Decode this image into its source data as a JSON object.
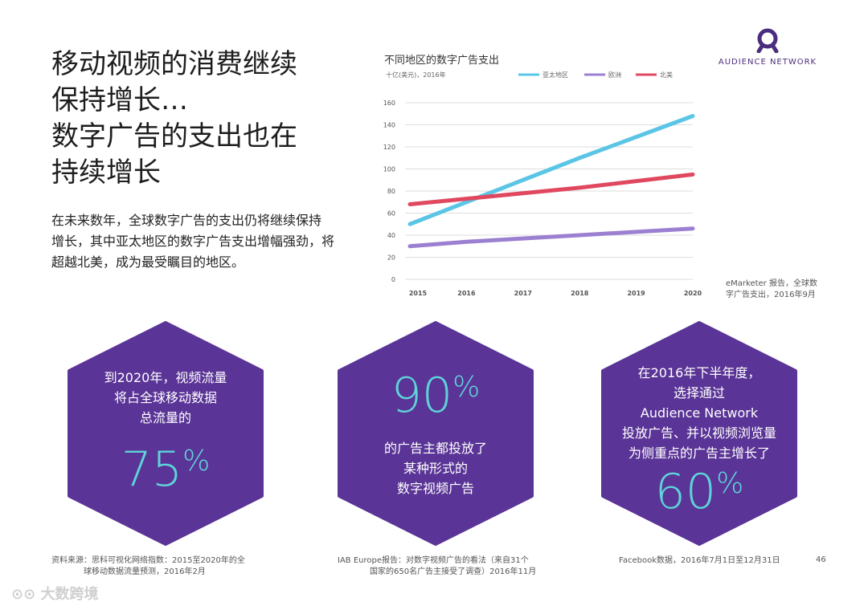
{
  "headline": [
    "移动视频的消费继续",
    "保持增长…",
    "数字广告的支出也在",
    "持续增长"
  ],
  "intro": [
    "在未来数年，全球数字广告的支出仍将继续保持",
    "增长，其中亚太地区的数字广告支出增幅强劲，将",
    "超越北美，成为最受瞩目的地区。"
  ],
  "brand": {
    "label": "AUDIENCE NETWORK",
    "icon": "audience-network-logo",
    "color": "#4b2d7f"
  },
  "chart_data": {
    "type": "line",
    "title": "不同地区的数字广告支出",
    "ylabel": "十亿(美元)，2016年",
    "x": [
      2015,
      2016,
      2017,
      2018,
      2019,
      2020
    ],
    "xticks": [
      "2015",
      "2016",
      "2017",
      "2018",
      "2019",
      "2020"
    ],
    "yticks": [
      "0",
      "20",
      "40",
      "60",
      "80",
      "100",
      "120",
      "140",
      "160"
    ],
    "ylim": [
      0,
      160
    ],
    "grid": true,
    "legend_position": "top",
    "series": [
      {
        "name": "亚太地区",
        "color": "#5bc5e6",
        "values": [
          50,
          70,
          90,
          110,
          129,
          148
        ]
      },
      {
        "name": "欧洲",
        "color": "#9b7fd1",
        "values": [
          30,
          34,
          37,
          40,
          43,
          46
        ]
      },
      {
        "name": "北美",
        "color": "#e0485f",
        "values": [
          68,
          73,
          78,
          83,
          89,
          95
        ]
      }
    ],
    "source": [
      "eMarketer 报告，全球数",
      "字广告支出，2016年9月"
    ]
  },
  "stats": [
    {
      "lines_before": [
        "到2020年，视频流量",
        "将占全球移动数据",
        "总流量的"
      ],
      "number": "75",
      "percent": "%",
      "lines_after": []
    },
    {
      "lines_before": [],
      "number": "90",
      "percent": "%",
      "lines_after": [
        "的广告主都投放了",
        "某种形式的",
        "数字视频广告"
      ]
    },
    {
      "lines_before": [
        "在2016年下半年度，",
        "选择通过",
        "Audience Network",
        "投放广告、并以视频浏览量",
        "为侧重点的广告主增长了"
      ],
      "number": "60",
      "percent": "%",
      "lines_after": []
    }
  ],
  "hex_color": "#5a3496",
  "number_color": "#5fd3d9",
  "footnotes": [
    [
      "资料来源：思科可视化网络指数：2015至2020年的全",
      "球移动数据流量预测，2016年2月"
    ],
    [
      "IAB Europe报告：对数字视频广告的看法（来自31个",
      "国家的650名广告主接受了调查）2016年11月"
    ],
    [
      "Facebook数据，2016年7月1日至12月31日"
    ]
  ],
  "page_number": "46",
  "watermark": "大数跨境"
}
